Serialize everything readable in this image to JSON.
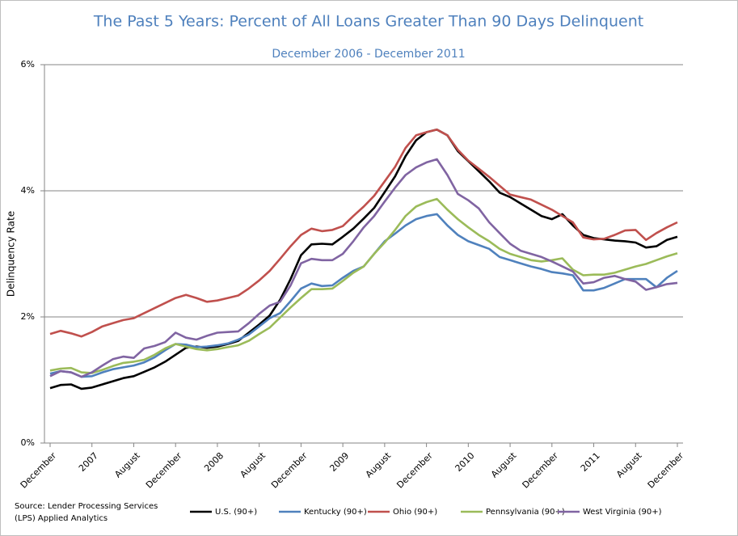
{
  "chart_data": {
    "type": "line",
    "title": "The Past 5 Years: Percent of All Loans Greater Than 90 Days Delinquent",
    "subtitle": "December 2006 - December 2011",
    "y_label": "Delinquency Rate",
    "source": [
      "Source: Lender Processing Services",
      "(LPS) Applied Analytics"
    ],
    "categories": [
      "December",
      null,
      null,
      null,
      "2007",
      null,
      null,
      null,
      "August",
      null,
      null,
      null,
      "December",
      null,
      null,
      null,
      "2008",
      null,
      null,
      null,
      "August",
      null,
      null,
      null,
      "December",
      null,
      null,
      null,
      "2009",
      null,
      null,
      null,
      "August",
      null,
      null,
      null,
      "December",
      null,
      null,
      null,
      "2010",
      null,
      null,
      null,
      "August",
      null,
      null,
      null,
      "December",
      null,
      null,
      null,
      "2011",
      null,
      null,
      null,
      "August",
      null,
      null,
      null,
      "December"
    ],
    "ylim": [
      0,
      6
    ],
    "yticks": [
      {
        "value": 0,
        "label": "0%"
      },
      {
        "value": 2,
        "label": "2%"
      },
      {
        "value": 4,
        "label": "4%"
      },
      {
        "value": 6,
        "label": "6%"
      }
    ],
    "grid": true,
    "legend": "bottom",
    "series": [
      {
        "name": "U.S. (90+)",
        "color": "#000000",
        "values": [
          0.87,
          0.92,
          0.93,
          0.86,
          0.88,
          0.93,
          0.98,
          1.03,
          1.06,
          1.13,
          1.2,
          1.29,
          1.4,
          1.51,
          1.53,
          1.51,
          1.53,
          1.57,
          1.62,
          1.75,
          1.88,
          2.02,
          2.27,
          2.6,
          2.98,
          3.15,
          3.16,
          3.15,
          3.27,
          3.4,
          3.56,
          3.73,
          3.98,
          4.23,
          4.55,
          4.8,
          4.93,
          4.97,
          4.88,
          4.63,
          4.47,
          4.31,
          4.15,
          3.97,
          3.9,
          3.8,
          3.7,
          3.6,
          3.55,
          3.63,
          3.45,
          3.3,
          3.25,
          3.23,
          3.21,
          3.2,
          3.18,
          3.1,
          3.12,
          3.22,
          3.27
        ]
      },
      {
        "name": "Kentucky (90+)",
        "color": "#4f81bd",
        "values": [
          1.1,
          1.14,
          1.12,
          1.05,
          1.06,
          1.12,
          1.17,
          1.2,
          1.23,
          1.28,
          1.36,
          1.47,
          1.57,
          1.56,
          1.52,
          1.53,
          1.55,
          1.58,
          1.64,
          1.72,
          1.85,
          1.98,
          2.06,
          2.25,
          2.45,
          2.53,
          2.49,
          2.5,
          2.62,
          2.73,
          2.8,
          3.0,
          3.2,
          3.32,
          3.45,
          3.55,
          3.6,
          3.63,
          3.45,
          3.3,
          3.2,
          3.14,
          3.08,
          2.95,
          2.9,
          2.85,
          2.8,
          2.76,
          2.71,
          2.69,
          2.66,
          2.42,
          2.42,
          2.46,
          2.53,
          2.6,
          2.6,
          2.6,
          2.47,
          2.62,
          2.73
        ]
      },
      {
        "name": "Ohio (90+)",
        "color": "#c0504d",
        "values": [
          1.73,
          1.78,
          1.74,
          1.69,
          1.76,
          1.85,
          1.9,
          1.95,
          1.98,
          2.06,
          2.14,
          2.22,
          2.3,
          2.35,
          2.3,
          2.24,
          2.26,
          2.3,
          2.34,
          2.45,
          2.58,
          2.73,
          2.92,
          3.12,
          3.3,
          3.4,
          3.36,
          3.38,
          3.44,
          3.6,
          3.75,
          3.92,
          4.15,
          4.38,
          4.68,
          4.88,
          4.93,
          4.97,
          4.88,
          4.65,
          4.48,
          4.35,
          4.22,
          4.08,
          3.94,
          3.9,
          3.86,
          3.78,
          3.7,
          3.6,
          3.5,
          3.26,
          3.23,
          3.24,
          3.3,
          3.37,
          3.38,
          3.22,
          3.33,
          3.42,
          3.5
        ]
      },
      {
        "name": "Pennsylvania (90+)",
        "color": "#9bbb59",
        "values": [
          1.15,
          1.18,
          1.19,
          1.12,
          1.11,
          1.16,
          1.22,
          1.27,
          1.29,
          1.32,
          1.4,
          1.5,
          1.57,
          1.53,
          1.49,
          1.47,
          1.49,
          1.52,
          1.55,
          1.62,
          1.73,
          1.83,
          1.99,
          2.15,
          2.3,
          2.44,
          2.44,
          2.45,
          2.57,
          2.7,
          2.8,
          3.0,
          3.18,
          3.38,
          3.6,
          3.75,
          3.82,
          3.87,
          3.7,
          3.55,
          3.42,
          3.3,
          3.2,
          3.08,
          3.0,
          2.95,
          2.9,
          2.88,
          2.9,
          2.93,
          2.75,
          2.66,
          2.67,
          2.67,
          2.7,
          2.75,
          2.8,
          2.84,
          2.9,
          2.96,
          3.01
        ]
      },
      {
        "name": "West Virginia (90+)",
        "color": "#8064a2",
        "values": [
          1.06,
          1.14,
          1.12,
          1.05,
          1.12,
          1.23,
          1.33,
          1.37,
          1.35,
          1.5,
          1.54,
          1.6,
          1.75,
          1.67,
          1.64,
          1.7,
          1.75,
          1.76,
          1.77,
          1.9,
          2.05,
          2.18,
          2.24,
          2.5,
          2.85,
          2.92,
          2.9,
          2.9,
          3.0,
          3.2,
          3.42,
          3.6,
          3.83,
          4.05,
          4.25,
          4.37,
          4.45,
          4.5,
          4.25,
          3.95,
          3.85,
          3.72,
          3.5,
          3.33,
          3.16,
          3.05,
          3.0,
          2.95,
          2.88,
          2.8,
          2.72,
          2.53,
          2.55,
          2.62,
          2.65,
          2.6,
          2.56,
          2.43,
          2.47,
          2.52,
          2.54
        ]
      }
    ]
  }
}
